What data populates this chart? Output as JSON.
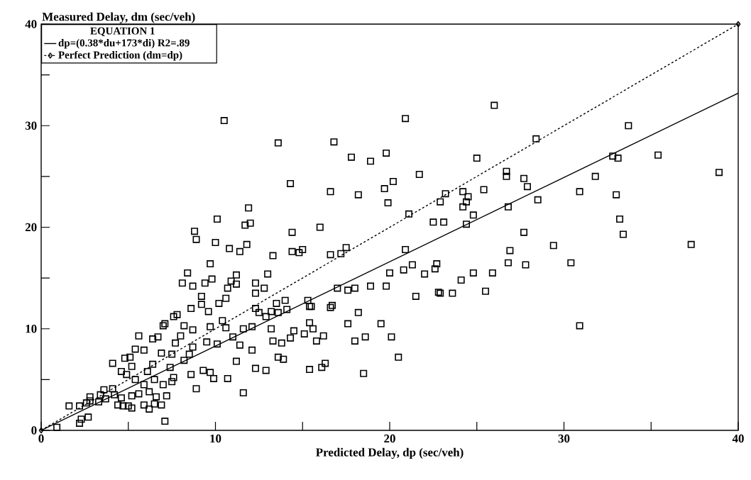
{
  "chart_data": {
    "type": "scatter",
    "xlabel": "Predicted Delay, dp (sec/veh)",
    "ylabel": "Measured Delay, dm (sec/veh)",
    "legend_title": "EQUATION 1",
    "legend": "top left",
    "grid": false,
    "xlim": [
      0,
      40
    ],
    "ylim": [
      0,
      40
    ],
    "xticks": [
      0,
      {
        "value": 5,
        "label": null
      },
      10,
      {
        "value": 15,
        "label": null
      },
      20,
      {
        "value": 25,
        "label": null
      },
      30,
      {
        "value": 35,
        "label": null
      },
      40
    ],
    "yticks": [
      0,
      {
        "value": 5,
        "label": null
      },
      10,
      {
        "value": 15,
        "label": null
      },
      20,
      {
        "value": 25,
        "label": null
      },
      30,
      {
        "value": 35,
        "label": null
      },
      40
    ],
    "series": [
      {
        "marker": "square",
        "color": "#000000",
        "x": [
          10.5,
          13.6,
          16.8,
          20.9,
          26,
          14.3,
          17.8,
          18.9,
          19.8,
          16.6,
          18.2,
          19.7,
          20.2,
          21.7,
          25,
          26.7,
          26.7,
          28.4,
          33.7,
          35.4,
          32.8,
          33.1,
          31.8,
          30.9,
          33,
          38.9,
          27.7,
          27.9,
          24.2,
          24.4,
          24.5,
          24.2,
          26.8,
          28.5,
          25.4,
          23.2,
          22.9,
          22.5,
          23.1,
          21.1,
          19.9,
          24.4,
          24.8,
          27.7,
          29.4,
          33.2,
          33.4,
          37.3,
          30.4,
          27.8,
          26.8,
          26.9,
          25.9,
          24.8,
          24.1,
          22.7,
          22.6,
          21.3,
          22,
          20.9,
          20.8,
          21.5,
          22.8,
          22.9,
          23.6,
          25.5,
          30.9,
          20.5,
          20.1,
          19.5,
          19.8,
          20,
          18.9,
          18,
          17.6,
          18.2,
          17.6,
          18,
          18.6,
          18.5,
          16.3,
          16.1,
          15.4,
          15.1,
          15.8,
          16.2,
          15.4,
          15.6,
          15.4,
          16.6,
          16.7,
          17,
          17.2,
          17.5,
          16.6,
          16,
          15,
          14.8,
          14.4,
          13.3,
          14.4,
          12,
          11.7,
          11.9,
          11.4,
          11.8,
          10.8,
          10.9,
          10.7,
          11.2,
          11.2,
          12.3,
          12.8,
          13,
          12.3,
          12.3,
          12.5,
          12.9,
          13.2,
          13.5,
          13.6,
          14.1,
          14,
          15.3,
          15.5,
          14.5,
          13.8,
          13.3,
          13.6,
          13.9,
          12.9,
          12.3,
          11.2,
          10.7,
          11.6,
          12.1,
          12.1,
          13.2,
          14.3,
          10.1,
          10,
          8.8,
          8.9,
          9.7,
          9.8,
          9.4,
          8.4,
          8.1,
          8.7,
          7.8,
          7.6,
          7.1,
          7,
          8.6,
          9.2,
          9.2,
          9.6,
          10.2,
          10.6,
          10.4,
          10.6,
          11,
          11.6,
          11.4,
          10.1,
          9.5,
          8.7,
          8.5,
          8.2,
          8.6,
          8.9,
          9.7,
          9.3,
          9.9,
          7.1,
          7.5,
          7,
          6.5,
          6.1,
          6.4,
          5.9,
          5.4,
          5.6,
          6.4,
          6.7,
          6.9,
          7.5,
          7.7,
          8,
          8.2,
          8.7,
          9.7,
          4.1,
          4.6,
          5.1,
          4.8,
          5.2,
          4.9,
          5.4,
          5.9,
          6.2,
          5.6,
          5.9,
          6.2,
          6.9,
          6.6,
          5,
          4.7,
          4.4,
          4.6,
          4.2,
          4.1,
          3.6,
          3.7,
          3.3,
          2.8,
          2.6,
          2.8,
          3.4,
          2.2,
          1.6,
          2.7,
          2.3,
          2.2,
          0.9,
          5.2,
          5.2,
          7.4,
          7.6,
          7.2,
          6.5
        ],
        "values": [
          30.5,
          28.3,
          28.4,
          30.7,
          32,
          24.3,
          26.9,
          26.5,
          27.3,
          23.5,
          23.2,
          23.8,
          24.5,
          25.2,
          26.8,
          25.5,
          25,
          28.7,
          30,
          27.1,
          27,
          26.8,
          25,
          23.5,
          23.2,
          25.4,
          24.8,
          24,
          23.5,
          22.5,
          23,
          22,
          22,
          22.7,
          23.7,
          23.3,
          22.5,
          20.5,
          20.5,
          21.3,
          22.4,
          20.3,
          21.2,
          19.5,
          18.2,
          20.8,
          19.3,
          18.3,
          16.5,
          16.3,
          16.5,
          17.7,
          15.5,
          15.5,
          14.8,
          16.4,
          15.9,
          16.3,
          15.4,
          17.8,
          15.8,
          13.2,
          13.6,
          13.5,
          13.5,
          13.7,
          10.3,
          7.2,
          9.2,
          10.5,
          14.2,
          15.5,
          14.2,
          14,
          13.8,
          11.6,
          10.5,
          8.8,
          9.2,
          5.6,
          6.6,
          6.2,
          6,
          9.5,
          8.8,
          9.3,
          10.6,
          10,
          12.2,
          12.1,
          12.3,
          14,
          17.4,
          18,
          17.3,
          20,
          17.8,
          17.5,
          17.6,
          17.2,
          19.5,
          20.4,
          20.2,
          21.9,
          17.6,
          18.3,
          17.9,
          14.7,
          14,
          15.3,
          14.4,
          14.5,
          14,
          15.4,
          13.5,
          12,
          11.6,
          11.2,
          11.7,
          12.5,
          11.6,
          11.9,
          12.8,
          12.8,
          12.2,
          9.8,
          8.6,
          8.8,
          7.2,
          7,
          5.9,
          6.1,
          6.8,
          5.1,
          3.7,
          7.9,
          10.2,
          10,
          9.1,
          20.8,
          18.5,
          19.6,
          18.8,
          16.4,
          14.9,
          14.5,
          15.5,
          14.5,
          14.2,
          11.4,
          11.2,
          10.5,
          10.3,
          12,
          13.2,
          12.4,
          11.7,
          12.5,
          13,
          10.8,
          10.1,
          9.2,
          10,
          8.4,
          8.5,
          8.7,
          8.2,
          7.5,
          6.9,
          5.5,
          4.1,
          5.7,
          5.9,
          5.1,
          0.9,
          4.8,
          4.5,
          5,
          5.8,
          6.5,
          7.9,
          8,
          9.3,
          9,
          9.2,
          7.6,
          7.5,
          8.6,
          9.3,
          10.3,
          9.9,
          10.2,
          6.6,
          5.8,
          7.2,
          7.1,
          6.3,
          5.5,
          5,
          4.5,
          3.8,
          3.6,
          2.5,
          2.1,
          2.5,
          3.3,
          2.4,
          2.4,
          2.5,
          3.2,
          3.5,
          4.1,
          4,
          3.1,
          2.8,
          2.9,
          2.7,
          3.3,
          3.5,
          2.4,
          2.4,
          1.3,
          1.1,
          0.7,
          0.3,
          3.4,
          2.2,
          6.2,
          5.2,
          3.4,
          2.6
        ]
      },
      {
        "type": "line",
        "name": "dp=(0.38*du+173*di) R2=.89",
        "color": "#000000",
        "line_style": "solid",
        "x": [
          0,
          40
        ],
        "values": [
          0,
          33.2
        ]
      },
      {
        "type": "line",
        "name": "Perfect Prediction (dm=dp)",
        "color": "#000000",
        "line_style": "dashed",
        "marker": "diamond",
        "x": [
          0,
          40
        ],
        "values": [
          0,
          40
        ]
      }
    ]
  }
}
